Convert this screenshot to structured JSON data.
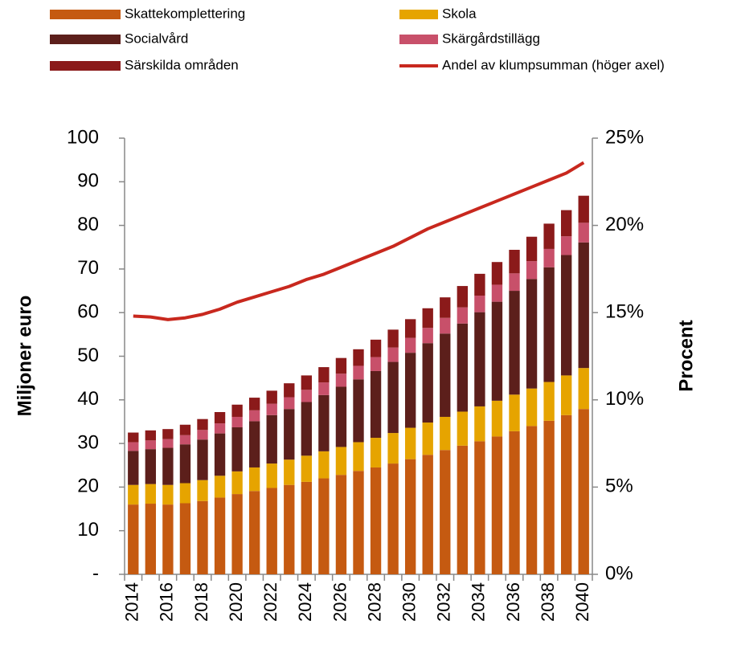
{
  "chart_data": {
    "type": "bar",
    "categories": [
      "2014",
      null,
      "2016",
      null,
      "2018",
      null,
      "2020",
      null,
      "2022",
      null,
      "2024",
      null,
      "2026",
      null,
      "2028",
      null,
      "2030",
      null,
      "2032",
      null,
      "2034",
      null,
      "2036",
      null,
      "2038",
      null,
      "2040"
    ],
    "stacked": true,
    "ylabel": "Miljoner euro",
    "y2label": "Procent",
    "ylim": [
      0,
      100
    ],
    "yticks": [
      {
        "value": 0,
        "label": "-"
      },
      10,
      20,
      30,
      40,
      50,
      60,
      70,
      80,
      90,
      100
    ],
    "y2lim": [
      0,
      25
    ],
    "y2ticks": [
      {
        "value": 0,
        "label": "0%"
      },
      {
        "value": 5,
        "label": "5%"
      },
      {
        "value": 10,
        "label": "10%"
      },
      {
        "value": 15,
        "label": "15%"
      },
      {
        "value": 20,
        "label": "20%"
      },
      {
        "value": 25,
        "label": "25%"
      }
    ],
    "legend": "top",
    "series": [
      {
        "name": "Skattekomplettering",
        "type": "bar",
        "color": "#c55a11",
        "values": [
          16,
          16.2,
          16,
          16.3,
          16.8,
          17.6,
          18.4,
          19.1,
          19.8,
          20.5,
          21.2,
          22,
          22.8,
          23.7,
          24.5,
          25.4,
          26.4,
          27.4,
          28.5,
          29.5,
          30.5,
          31.6,
          32.8,
          34,
          35.2,
          36.5,
          37.9
        ]
      },
      {
        "name": "Skola",
        "type": "bar",
        "color": "#e6a400",
        "values": [
          4.5,
          4.5,
          4.5,
          4.6,
          4.8,
          5,
          5.2,
          5.4,
          5.6,
          5.8,
          6,
          6.2,
          6.4,
          6.6,
          6.8,
          7,
          7.2,
          7.4,
          7.6,
          7.8,
          8,
          8.2,
          8.4,
          8.6,
          8.9,
          9.1,
          9.4
        ]
      },
      {
        "name": "Socialvård",
        "type": "bar",
        "color": "#5c1f1b",
        "values": [
          7.8,
          8.0,
          8.5,
          8.9,
          9.3,
          9.7,
          10.1,
          10.6,
          11.1,
          11.6,
          12.3,
          12.9,
          13.8,
          14.4,
          15.3,
          16.3,
          17.2,
          18.2,
          19.1,
          20.2,
          21.6,
          22.7,
          23.8,
          25.1,
          26.3,
          27.6,
          28.8
        ]
      },
      {
        "name": "Skärgårdstillägg",
        "type": "bar",
        "color": "#c8506a",
        "values": [
          2,
          2,
          2,
          2.1,
          2.2,
          2.3,
          2.4,
          2.5,
          2.6,
          2.7,
          2.8,
          2.9,
          3,
          3.1,
          3.2,
          3.3,
          3.4,
          3.5,
          3.6,
          3.7,
          3.8,
          3.9,
          4,
          4.1,
          4.2,
          4.3,
          4.5
        ]
      },
      {
        "name": "Särskilda områden",
        "type": "bar",
        "color": "#8b1a1a",
        "values": [
          2.2,
          2.3,
          2.3,
          2.4,
          2.5,
          2.6,
          2.8,
          2.9,
          3,
          3.2,
          3.3,
          3.5,
          3.6,
          3.8,
          4,
          4.1,
          4.3,
          4.5,
          4.7,
          4.9,
          5,
          5.2,
          5.4,
          5.6,
          5.8,
          6,
          6.2
        ]
      },
      {
        "name": "Andel av klumpsumman (höger axel)",
        "type": "line",
        "axis": "y2",
        "color": "#c8281e",
        "values": [
          14.8,
          14.75,
          14.6,
          14.7,
          14.9,
          15.2,
          15.6,
          15.9,
          16.2,
          16.5,
          16.9,
          17.2,
          17.6,
          18,
          18.4,
          18.8,
          19.3,
          19.8,
          20.2,
          20.6,
          21,
          21.4,
          21.8,
          22.2,
          22.6,
          23,
          23.6
        ]
      }
    ]
  }
}
